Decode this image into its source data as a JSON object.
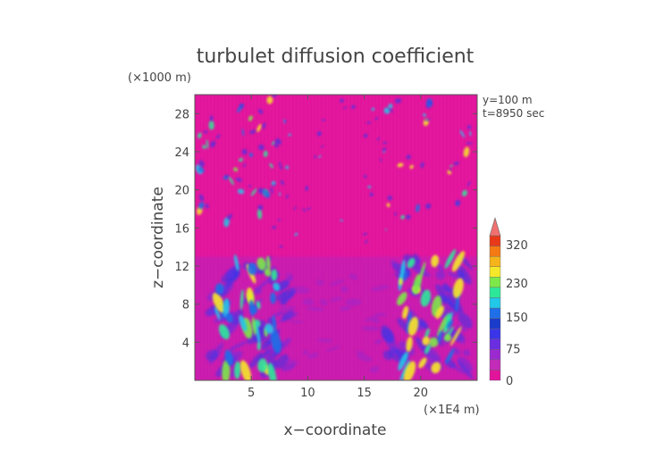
{
  "chart_data": {
    "type": "heatmap",
    "title": "turbulet diffusion coefficient",
    "xlabel": "x−coordinate",
    "ylabel": "z−coordinate",
    "x_unit": "(×1E4 m)",
    "y_unit": "(×1000 m)",
    "annotations": [
      "y=100 m",
      "t=8950 sec"
    ],
    "xlim": [
      0,
      25
    ],
    "ylim": [
      0,
      30
    ],
    "x_ticks": [
      5,
      10,
      15,
      20
    ],
    "y_ticks": [
      4,
      8,
      12,
      16,
      20,
      24,
      28
    ],
    "x_tick_labels": [
      "5",
      "10",
      "15",
      "20"
    ],
    "y_tick_labels": [
      "4",
      "8",
      "12",
      "16",
      "20",
      "24",
      "28"
    ],
    "colorbar": {
      "labels": [
        "0",
        "75",
        "150",
        "230",
        "320"
      ],
      "levels": [
        0,
        75,
        150,
        230,
        320
      ],
      "extend": "max",
      "colors": [
        "#e2149c",
        "#c32bb8",
        "#9b2ad0",
        "#6a2ee0",
        "#3a35e8",
        "#1a3ccc",
        "#1f6fe8",
        "#22c8e8",
        "#2ee89a",
        "#7ee84a",
        "#f5e82a",
        "#f5b41a",
        "#f57a14",
        "#e83a1a",
        "#f07070"
      ]
    },
    "background_value_color": "#e2149c"
  }
}
